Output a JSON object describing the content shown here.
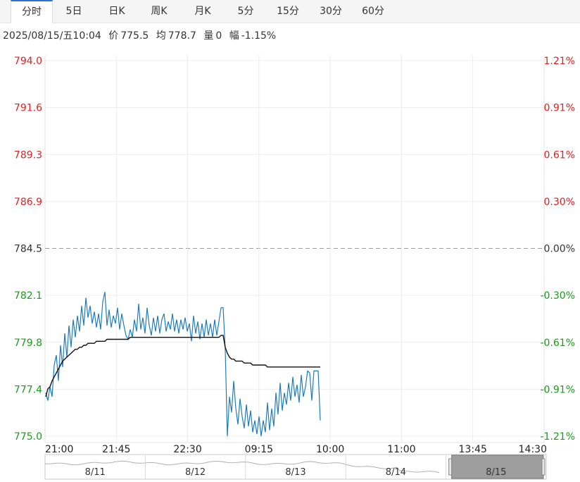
{
  "tabs": [
    {
      "label": "分时",
      "active": true
    },
    {
      "label": "5日",
      "active": false
    },
    {
      "label": "日K",
      "active": false
    },
    {
      "label": "周K",
      "active": false
    },
    {
      "label": "月K",
      "active": false
    },
    {
      "label": "5分",
      "active": false
    },
    {
      "label": "15分",
      "active": false
    },
    {
      "label": "30分",
      "active": false
    },
    {
      "label": "60分",
      "active": false
    }
  ],
  "info": {
    "datetime": "2025/08/15/五10:04",
    "price_label": "价",
    "price": "775.5",
    "avg_label": "均",
    "avg": "778.7",
    "vol_label": "量",
    "vol": "0",
    "amp_label": "幅",
    "amp": "-1.15%"
  },
  "colors": {
    "up": "#e02020",
    "down": "#1a9a1a",
    "flat": "#333333",
    "price_line": "#1f7bbf",
    "avg_line": "#111111",
    "navigator_window": "#9e9e9e"
  },
  "chart_data": {
    "type": "line",
    "prev_close": 784.5,
    "ylim": [
      775.0,
      794.0
    ],
    "left_ticks": [
      "794.0",
      "791.6",
      "789.3",
      "786.9",
      "784.5",
      "782.1",
      "779.8",
      "777.4",
      "775.0"
    ],
    "right_ticks": [
      "1.21%",
      "0.91%",
      "0.61%",
      "0.30%",
      "0.00%",
      "-0.30%",
      "-0.61%",
      "-0.91%",
      "-1.21%"
    ],
    "x_ticks": [
      "21:00",
      "21:45",
      "22:30",
      "09:15",
      "10:00",
      "11:00",
      "13:45",
      "14:30"
    ],
    "grid": true,
    "series": [
      {
        "values": [
          777.2,
          776.8,
          777.5,
          777.0,
          778.6,
          779.1,
          777.8,
          779.6,
          778.5,
          780.2,
          779.0,
          780.6,
          779.5,
          780.9,
          780.0,
          781.1,
          780.3,
          781.6,
          780.6,
          782.0,
          781.0,
          781.6,
          780.7,
          781.3,
          780.5,
          781.2,
          780.4,
          781.8,
          782.3,
          780.6,
          781.4,
          780.5,
          781.1,
          780.7,
          781.5,
          780.4,
          781.2,
          780.6,
          780.1,
          779.9,
          780.4,
          780.0,
          780.9,
          780.3,
          781.7,
          780.4,
          781.0,
          780.2,
          781.5,
          780.6,
          780.1,
          781.0,
          780.3,
          781.1,
          780.2,
          780.9,
          781.2,
          780.3,
          780.8,
          780.4,
          781.2,
          780.3,
          780.9,
          780.2,
          780.9,
          780.4,
          781.0,
          780.3,
          780.7,
          779.8,
          781.1,
          780.2,
          780.8,
          779.9,
          780.7,
          780.0,
          780.9,
          780.1,
          780.7,
          780.0,
          780.9,
          780.1,
          780.8,
          781.5,
          781.5,
          779.4,
          775.0,
          777.0,
          776.2,
          777.8,
          776.4,
          775.6,
          776.9,
          776.0,
          775.4,
          776.6,
          775.5,
          776.3,
          775.2,
          775.8,
          775.1,
          776.0,
          775.0,
          775.8,
          775.2,
          776.7,
          775.3,
          776.4,
          775.5,
          777.2,
          776.1,
          777.7,
          776.3,
          777.2,
          776.6,
          777.7,
          776.8,
          778.0,
          777.0,
          777.6,
          776.7,
          778.1,
          777.0,
          777.5,
          778.3,
          778.2,
          776.8,
          778.3,
          778.3,
          778.3,
          775.8
        ]
      },
      {
        "values": [
          777.0,
          777.4,
          777.5,
          777.8,
          778.0,
          778.2,
          778.4,
          778.6,
          778.8,
          778.9,
          779.0,
          779.1,
          779.2,
          779.3,
          779.4,
          779.4,
          779.5,
          779.5,
          779.6,
          779.6,
          779.7,
          779.7,
          779.7,
          779.7,
          779.8,
          779.8,
          779.8,
          779.8,
          779.8,
          779.9,
          779.9,
          779.9,
          779.9,
          779.9,
          779.9,
          779.9,
          779.9,
          779.9,
          779.9,
          779.9,
          780.0,
          780.0,
          780.0,
          780.0,
          780.0,
          780.0,
          780.0,
          780.0,
          780.0,
          780.0,
          780.0,
          780.0,
          780.0,
          780.0,
          780.0,
          780.0,
          780.0,
          780.0,
          780.0,
          780.0,
          780.0,
          780.0,
          780.0,
          780.0,
          780.0,
          780.0,
          780.0,
          780.0,
          780.0,
          780.0,
          780.0,
          780.0,
          780.0,
          780.0,
          780.0,
          780.0,
          780.0,
          780.0,
          780.0,
          780.0,
          780.0,
          780.0,
          780.0,
          780.1,
          780.1,
          779.5,
          779.2,
          779.0,
          778.9,
          778.9,
          778.8,
          778.8,
          778.8,
          778.8,
          778.7,
          778.7,
          778.7,
          778.7,
          778.6,
          778.6,
          778.6,
          778.6,
          778.6,
          778.6,
          778.6,
          778.5,
          778.5,
          778.5,
          778.5,
          778.5,
          778.5,
          778.5,
          778.5,
          778.5,
          778.5,
          778.5,
          778.5,
          778.5,
          778.5,
          778.5,
          778.5,
          778.5,
          778.5,
          778.5,
          778.5,
          778.5,
          778.5,
          778.5,
          778.5,
          778.5,
          778.5
        ]
      }
    ],
    "navigator": {
      "labels": [
        "8/11",
        "8/12",
        "8/13",
        "8/14",
        "8/15"
      ],
      "window": "8/15"
    }
  }
}
